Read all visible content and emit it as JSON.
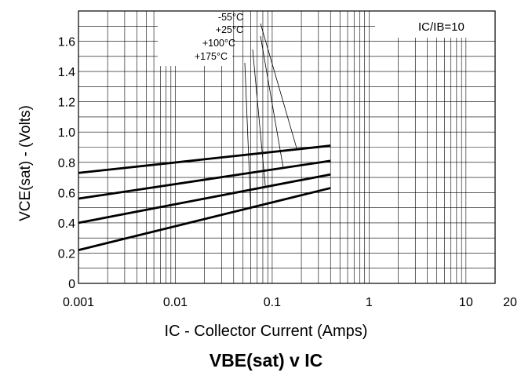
{
  "chart_data": {
    "type": "line",
    "title": "VBE(sat) v IC",
    "xlabel": "IC - Collector Current (Amps)",
    "ylabel": "VCE(sat) - (Volts)",
    "x_scale": "log",
    "xlim": [
      0.001,
      20
    ],
    "ylim": [
      0,
      1.8
    ],
    "x_ticks": [
      {
        "value": 0.001,
        "label": "0.001"
      },
      {
        "value": 0.01,
        "label": "0.01"
      },
      {
        "value": 0.1,
        "label": "0.1"
      },
      {
        "value": 1,
        "label": "1"
      },
      {
        "value": 10,
        "label": "10"
      },
      {
        "value": 20,
        "label": "20"
      }
    ],
    "y_ticks": [
      {
        "value": 0,
        "label": "0"
      },
      {
        "value": 0.2,
        "label": "0.2"
      },
      {
        "value": 0.4,
        "label": "0.4"
      },
      {
        "value": 0.6,
        "label": "0.6"
      },
      {
        "value": 0.8,
        "label": "0.8"
      },
      {
        "value": 1.0,
        "label": "1.0"
      },
      {
        "value": 1.2,
        "label": "1.2"
      },
      {
        "value": 1.4,
        "label": "1.4"
      },
      {
        "value": 1.6,
        "label": "1.6"
      }
    ],
    "grid": true,
    "condition_label": "IC/IB=10",
    "series": [
      {
        "name": "-55°C",
        "x": [
          0.001,
          0.4
        ],
        "y": [
          0.73,
          0.91
        ]
      },
      {
        "name": "+25°C",
        "x": [
          0.001,
          0.4
        ],
        "y": [
          0.56,
          0.81
        ]
      },
      {
        "name": "+100°C",
        "x": [
          0.001,
          0.4
        ],
        "y": [
          0.4,
          0.72
        ]
      },
      {
        "name": "+175°C",
        "x": [
          0.001,
          0.4
        ],
        "y": [
          0.22,
          0.63
        ]
      }
    ],
    "annotation_targets": [
      {
        "series": "-55°C",
        "x": 0.18
      },
      {
        "series": "+25°C",
        "x": 0.13
      },
      {
        "series": "+100°C",
        "x": 0.085
      },
      {
        "series": "+175°C",
        "x": 0.06
      }
    ]
  }
}
